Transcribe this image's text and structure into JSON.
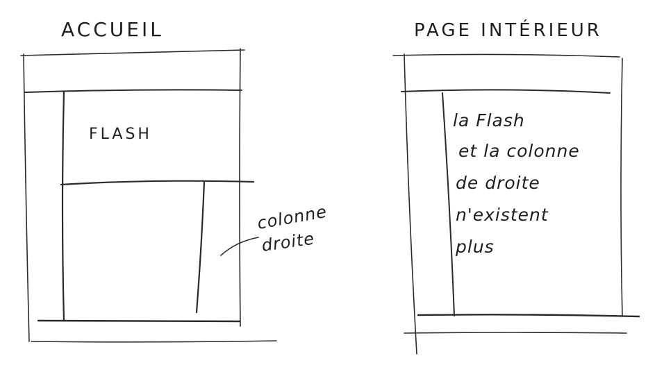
{
  "left_sketch": {
    "title": "ACCUEIL",
    "flash_label": "FLASH",
    "annotation_lines": [
      "colonne",
      "droite"
    ]
  },
  "right_sketch": {
    "title": "PAGE INTÉRIEUR",
    "note_lines": [
      "la Flash",
      "et la colonne",
      "de droite",
      "n'existent",
      "plus"
    ]
  },
  "colors": {
    "pencil": "#2a2a2a",
    "paper": "#ffffff"
  }
}
